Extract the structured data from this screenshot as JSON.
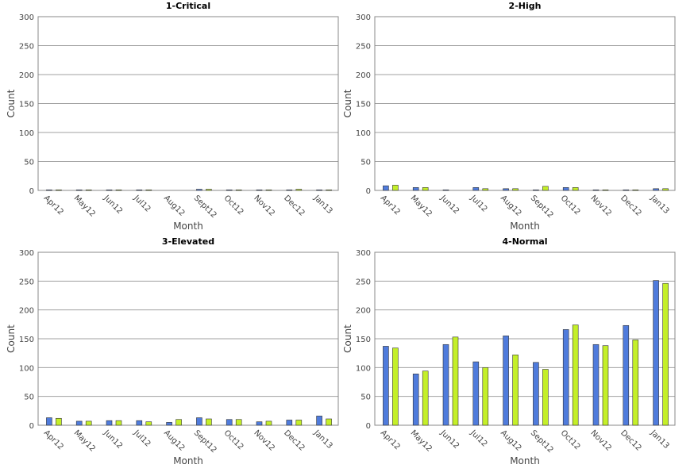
{
  "colors": {
    "series_a": "#4f7bdc",
    "series_b": "#c4ef29"
  },
  "chart_data": [
    {
      "type": "bar",
      "title": "1-Critical",
      "xlabel": "Month",
      "ylabel": "Count",
      "ylim": [
        0,
        300
      ],
      "yticks": [
        0,
        50,
        100,
        150,
        200,
        250,
        300
      ],
      "grid": true,
      "categories": [
        "Apr12",
        "May12",
        "Jun12",
        "Jul12",
        "Aug12",
        "Sept12",
        "Oct12",
        "Nov12",
        "Dec12",
        "Jan13"
      ],
      "series": [
        {
          "values": [
            1,
            1,
            1,
            1,
            0,
            2,
            1,
            1,
            1,
            1
          ]
        },
        {
          "values": [
            1,
            1,
            1,
            1,
            0,
            2,
            1,
            1,
            2,
            1
          ]
        }
      ]
    },
    {
      "type": "bar",
      "title": "2-High",
      "xlabel": "Month",
      "ylabel": "Count",
      "ylim": [
        0,
        300
      ],
      "yticks": [
        0,
        50,
        100,
        150,
        200,
        250,
        300
      ],
      "grid": true,
      "categories": [
        "Apr12",
        "May12",
        "Jun12",
        "Jul12",
        "Aug12",
        "Sept12",
        "Oct12",
        "Nov12",
        "Dec12",
        "Jan13"
      ],
      "series": [
        {
          "values": [
            8,
            5,
            1,
            5,
            3,
            1,
            5,
            1,
            1,
            3
          ]
        },
        {
          "values": [
            9,
            5,
            0,
            3,
            3,
            7,
            5,
            1,
            1,
            3
          ]
        }
      ]
    },
    {
      "type": "bar",
      "title": "3-Elevated",
      "xlabel": "Month",
      "ylabel": "Count",
      "ylim": [
        0,
        300
      ],
      "yticks": [
        0,
        50,
        100,
        150,
        200,
        250,
        300
      ],
      "grid": true,
      "categories": [
        "Apr12",
        "May12",
        "Jun12",
        "Jul12",
        "Aug12",
        "Sept12",
        "Oct12",
        "Nov12",
        "Dec12",
        "Jan13"
      ],
      "series": [
        {
          "values": [
            13,
            7,
            8,
            8,
            5,
            13,
            10,
            6,
            9,
            16
          ]
        },
        {
          "values": [
            12,
            7,
            8,
            6,
            10,
            11,
            10,
            7,
            9,
            11
          ]
        }
      ]
    },
    {
      "type": "bar",
      "title": "4-Normal",
      "xlabel": "Month",
      "ylabel": "Count",
      "ylim": [
        0,
        300
      ],
      "yticks": [
        0,
        50,
        100,
        150,
        200,
        250,
        300
      ],
      "grid": true,
      "categories": [
        "Apr12",
        "May12",
        "Jun12",
        "Jul12",
        "Aug12",
        "Sept12",
        "Oct12",
        "Nov12",
        "Dec12",
        "Jan13"
      ],
      "series": [
        {
          "values": [
            137,
            89,
            140,
            110,
            155,
            109,
            166,
            140,
            173,
            251
          ]
        },
        {
          "values": [
            134,
            94,
            153,
            100,
            122,
            97,
            174,
            138,
            148,
            246
          ]
        }
      ]
    }
  ]
}
